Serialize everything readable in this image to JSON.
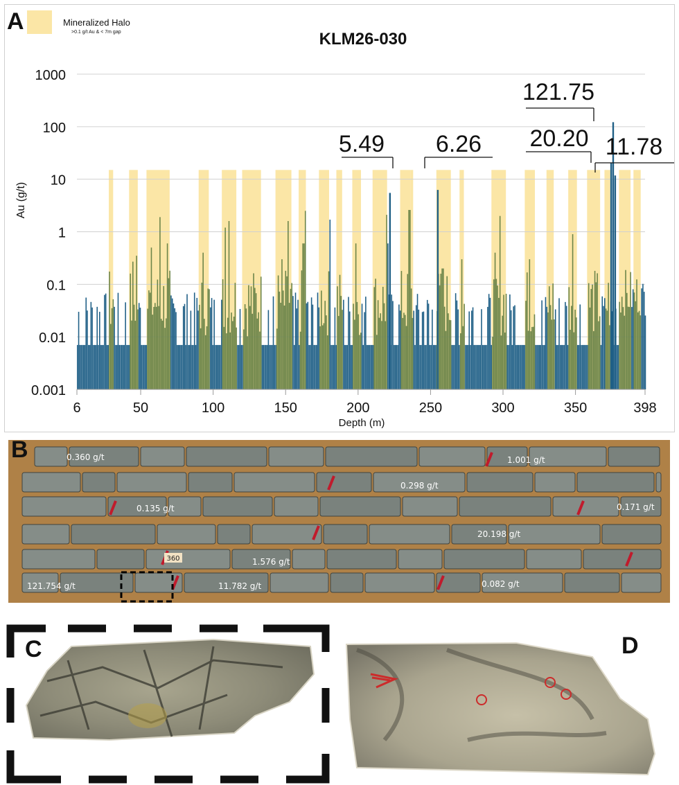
{
  "panels": {
    "a": "A",
    "b": "B",
    "c": "C",
    "d": "D"
  },
  "legend": {
    "title": "Mineralized Halo",
    "subtitle": ">0.1 g/t Au & < 7m gap",
    "swatch_color": "#fbe6a6"
  },
  "colors": {
    "bar": "#1f5f86",
    "halo": "#fbe6a6",
    "halo_bar": "#6b8449"
  },
  "chart_data": {
    "type": "bar",
    "title": "KLM26-030",
    "xlabel": "Depth (m)",
    "ylabel": "Au (g/t)",
    "y_scale": "log",
    "ylim": [
      0.001,
      1000
    ],
    "xlim": [
      6,
      398
    ],
    "x_ticks": [
      "6",
      "50",
      "100",
      "150",
      "200",
      "250",
      "300",
      "350",
      "398"
    ],
    "y_ticks": [
      "1000",
      "100",
      "10",
      "1",
      "0.1",
      "0.01",
      "0.001"
    ],
    "grid": "horizontal",
    "legend_position": "top-left",
    "detection_floor": 0.007,
    "halos": [
      [
        28,
        31
      ],
      [
        42,
        48
      ],
      [
        54,
        70
      ],
      [
        90,
        97
      ],
      [
        106,
        116
      ],
      [
        120,
        133
      ],
      [
        143,
        154
      ],
      [
        159,
        164
      ],
      [
        173,
        180
      ],
      [
        185,
        189
      ],
      [
        196,
        202
      ],
      [
        210,
        220
      ],
      [
        229,
        236
      ],
      [
        236,
        238
      ],
      [
        254,
        264
      ],
      [
        270,
        273
      ],
      [
        292,
        302
      ],
      [
        315,
        322
      ],
      [
        330,
        335
      ],
      [
        345,
        351
      ],
      [
        358,
        367
      ],
      [
        370,
        374
      ],
      [
        380,
        388
      ],
      [
        390,
        395
      ]
    ],
    "peaks": [
      {
        "depth": 29,
        "au": 1.1
      },
      {
        "depth": 44,
        "au": 0.27
      },
      {
        "depth": 47,
        "au": 0.35
      },
      {
        "depth": 57,
        "au": 0.5
      },
      {
        "depth": 63,
        "au": 1.9
      },
      {
        "depth": 68,
        "au": 0.6
      },
      {
        "depth": 93,
        "au": 0.4
      },
      {
        "depth": 108,
        "au": 1.2
      },
      {
        "depth": 111,
        "au": 1.6
      },
      {
        "depth": 114,
        "au": 3.3
      },
      {
        "depth": 123,
        "au": 0.7
      },
      {
        "depth": 130,
        "au": 1.2
      },
      {
        "depth": 147,
        "au": 0.3
      },
      {
        "depth": 151,
        "au": 1.6
      },
      {
        "depth": 162,
        "au": 0.6
      },
      {
        "depth": 163,
        "au": 2.5
      },
      {
        "depth": 176,
        "au": 0.2
      },
      {
        "depth": 180,
        "au": 1.7
      },
      {
        "depth": 186,
        "au": 0.25
      },
      {
        "depth": 198,
        "au": 0.6
      },
      {
        "depth": 200,
        "au": 0.35
      },
      {
        "depth": 215,
        "au": 0.9
      },
      {
        "depth": 219,
        "au": 2.1
      },
      {
        "depth": 220,
        "au": 0.6
      },
      {
        "depth": 232,
        "au": 0.6
      },
      {
        "depth": 235,
        "au": 2.6
      },
      {
        "depth": 237,
        "au": 1.5
      },
      {
        "depth": 258,
        "au": 0.2
      },
      {
        "depth": 262,
        "au": 1.8
      },
      {
        "depth": 271,
        "au": 0.3
      },
      {
        "depth": 294,
        "au": 0.4
      },
      {
        "depth": 298,
        "au": 2.0
      },
      {
        "depth": 318,
        "au": 0.3
      },
      {
        "depth": 320,
        "au": 0.5
      },
      {
        "depth": 348,
        "au": 0.9
      },
      {
        "depth": 350,
        "au": 1.5
      },
      {
        "depth": 362,
        "au": 1.0
      },
      {
        "depth": 366,
        "au": 0.45
      }
    ],
    "high_grade": [
      {
        "depth": 376,
        "au": 121.75,
        "label": "121.75"
      },
      {
        "depth": 374.6,
        "au": 20.2,
        "label": "20.20"
      },
      {
        "depth": 377.4,
        "au": 11.78,
        "label": "11.78"
      },
      {
        "depth": 222,
        "au": 5.49,
        "label": "5.49"
      },
      {
        "depth": 255,
        "au": 6.26,
        "label": "6.26"
      }
    ]
  },
  "core_tray": {
    "labels": [
      "0.360 g/t",
      "1.001 g/t",
      "0.298 g/t",
      "0.135 g/t",
      "0.171 g/t",
      "20.198 g/t",
      "1.576 g/t",
      "121.754 g/t",
      "11.782 g/t",
      "0.082 g/t"
    ],
    "markers": [
      "360"
    ]
  }
}
